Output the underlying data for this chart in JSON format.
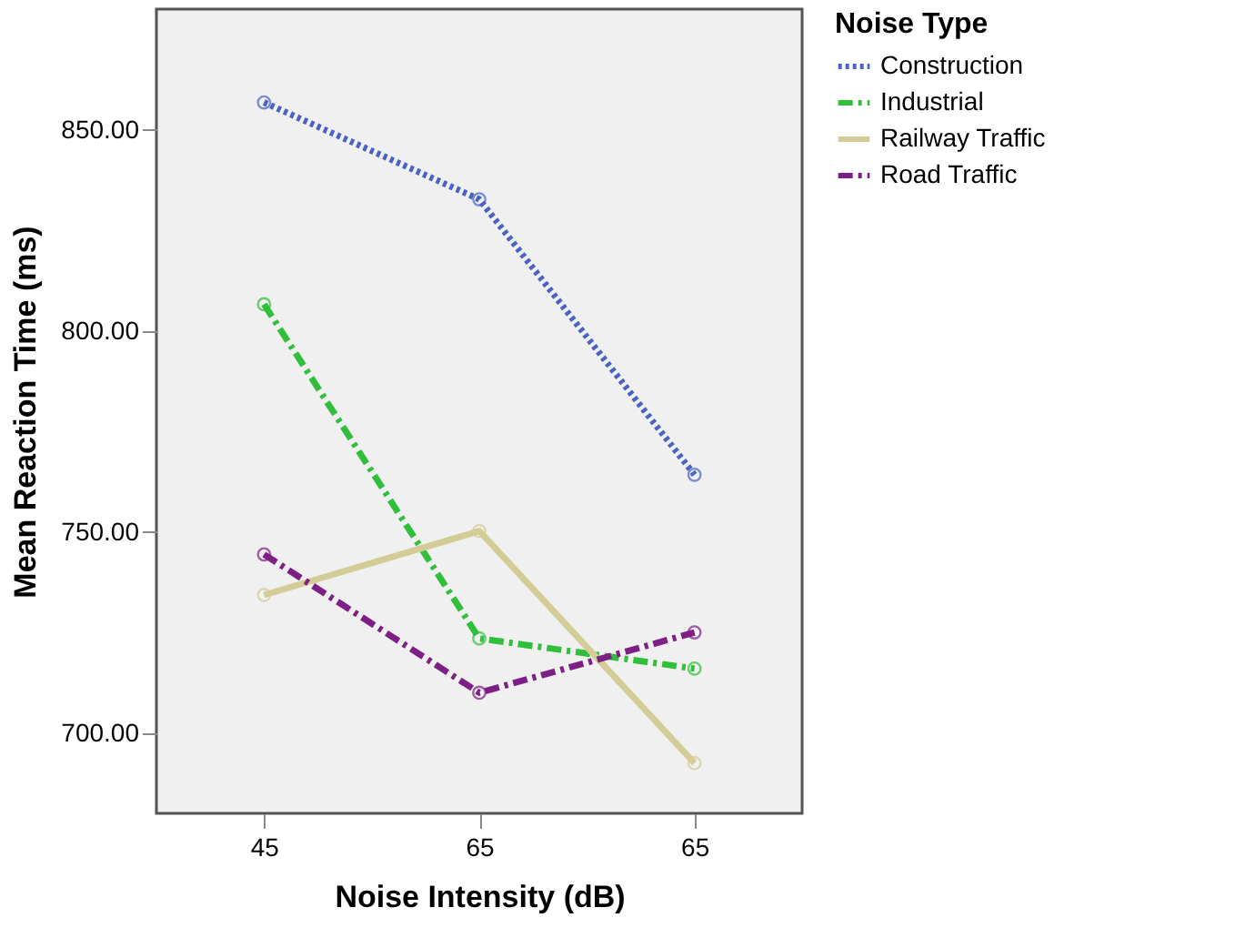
{
  "chart_data": {
    "type": "line",
    "xlabel": "Noise Intensity (dB)",
    "ylabel": "Mean Reaction Time (ms)",
    "legend_title": "Noise Type",
    "categories": [
      "45",
      "65",
      "65"
    ],
    "series": [
      {
        "name": "Construction",
        "color": "#4a62c4",
        "line_style": "dotted",
        "values": [
          856.8,
          832.7,
          764.2
        ]
      },
      {
        "name": "Industrial",
        "color": "#2fbf3a",
        "line_style": "dashed",
        "values": [
          806.6,
          723.5,
          716.0
        ]
      },
      {
        "name": "Railway Traffic",
        "color": "#d4cc96",
        "line_style": "solid",
        "values": [
          734.3,
          750.2,
          692.5
        ]
      },
      {
        "name": "Road Traffic",
        "color": "#7e1f86",
        "line_style": "dashed",
        "values": [
          744.4,
          710.0,
          725.0
        ]
      }
    ],
    "ylim": [
      680,
      880
    ],
    "yticks": [
      {
        "value": 700,
        "label": "700.00"
      },
      {
        "value": 750,
        "label": "750.00"
      },
      {
        "value": 800,
        "label": "800.00"
      },
      {
        "value": 850,
        "label": "850.00"
      }
    ],
    "marker": "circle",
    "grid": false,
    "legend": "top right"
  }
}
